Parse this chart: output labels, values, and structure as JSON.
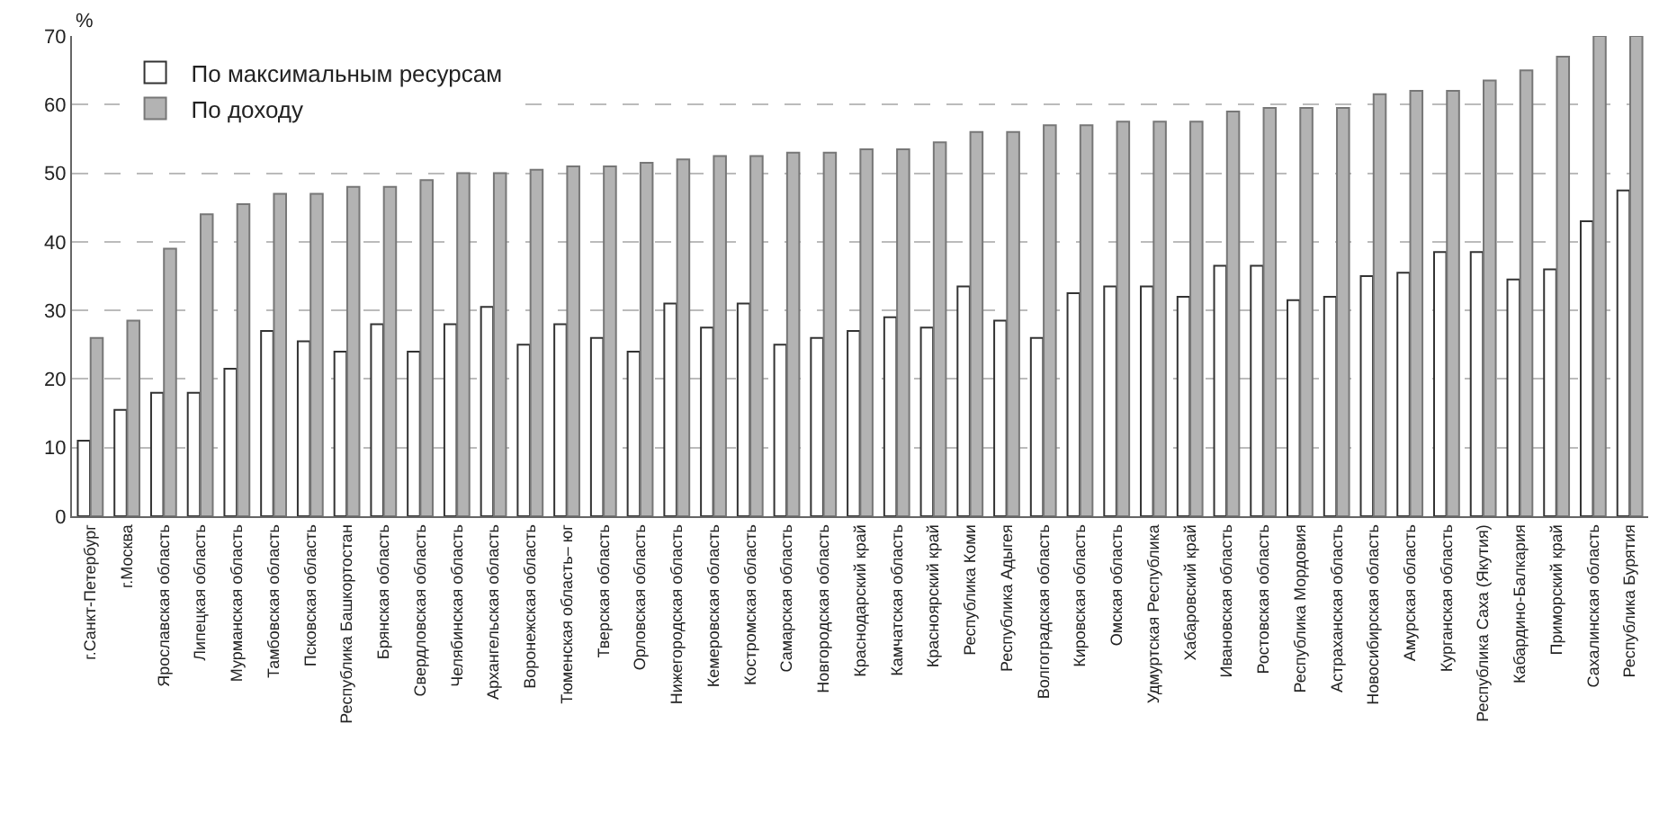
{
  "chart_data": {
    "type": "bar",
    "ylabel": "%",
    "categories": [
      "г.Санкт-Петербург",
      "г.Москва",
      "Ярославская область",
      "Липецкая область",
      "Мурманская область",
      "Тамбовская область",
      "Псковская область",
      "Республика Башкортостан",
      "Брянская область",
      "Свердловская область",
      "Челябинская область",
      "Архангельская область",
      "Воронежская область",
      "Тюменская область– юг",
      "Тверская область",
      "Орловская область",
      "Нижегородская область",
      "Кемеровская область",
      "Костромская область",
      "Самарская область",
      "Новгородская область",
      "Краснодарский край",
      "Камчатская область",
      "Красноярский край",
      "Республика Коми",
      "Республика Адыгея",
      "Волгоградская область",
      "Кировская область",
      "Омская область",
      "Удмуртская Республика",
      "Хабаровский край",
      "Ивановская область",
      "Ростовская область",
      "Республика Мордовия",
      "Астраханская область",
      "Новосибирская область",
      "Амурская область",
      "Курганская область",
      "Республика Саха (Якутия)",
      "Кабардино-Балкария",
      "Приморский край",
      "Сахалинская область",
      "Республика Бурятия"
    ],
    "series": [
      {
        "name": "По максимальным ресурсам",
        "color": "#ffffff",
        "values": [
          11,
          15.5,
          18,
          18,
          21.5,
          27,
          25.5,
          24,
          28,
          24,
          28,
          30.5,
          25,
          28,
          26,
          24,
          31,
          27.5,
          31,
          25,
          26,
          27,
          29,
          27.5,
          33.5,
          28.5,
          26,
          32.5,
          33.5,
          33.5,
          32,
          36.5,
          36.5,
          31.5,
          32,
          35,
          35.5,
          38.5,
          38.5,
          34.5,
          36,
          43,
          47.5
        ]
      },
      {
        "name": "По доходу",
        "color": "#b3b3b3",
        "values": [
          26,
          28.5,
          39,
          44,
          45.5,
          47,
          47,
          48,
          48,
          49,
          50,
          50,
          50.5,
          51,
          51,
          51.5,
          52,
          52.5,
          52.5,
          53,
          53,
          53.5,
          53.5,
          54.5,
          56,
          56,
          57,
          57,
          57.5,
          57.5,
          57.5,
          59,
          59.5,
          59.5,
          59.5,
          61.5,
          62,
          62,
          63.5,
          65,
          67,
          70,
          70
        ]
      }
    ],
    "ylim": [
      0,
      70
    ],
    "yticks": [
      0,
      10,
      20,
      30,
      40,
      50,
      60,
      70
    ],
    "grid": "y",
    "legend": "top left"
  }
}
